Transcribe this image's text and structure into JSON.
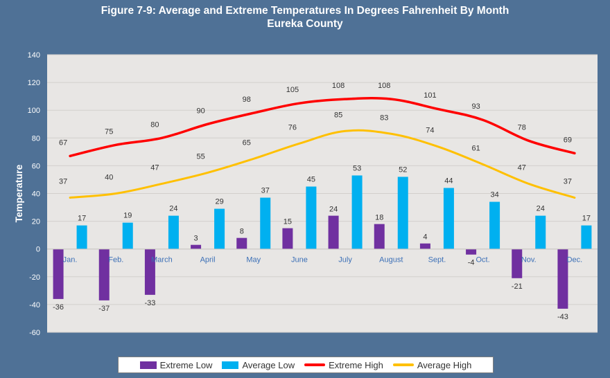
{
  "title": {
    "line1": "Figure 7-9: Average and Extreme Temperatures In Degrees Fahrenheit By Month",
    "line2": "Eureka County"
  },
  "colors": {
    "extreme_low": "#7030a0",
    "average_low": "#00b0f0",
    "extreme_high": "#ff0000",
    "average_high": "#ffc000",
    "plot_bg": "#e8e6e4",
    "frame_bg": "#4f7196"
  },
  "chart_data": {
    "type": "bar",
    "title": "Figure 7-9: Average and Extreme Temperatures In Degrees Fahrenheit By Month",
    "subtitle": "Eureka County",
    "xlabel": "",
    "ylabel": "Temperature",
    "ylim": [
      -60,
      140
    ],
    "yticks": [
      -60,
      -40,
      -20,
      0,
      20,
      40,
      60,
      80,
      100,
      120,
      140
    ],
    "grid": true,
    "legend_position": "bottom",
    "categories": [
      "Jan.",
      "Feb.",
      "March",
      "April",
      "May",
      "June",
      "July",
      "August",
      "Sept.",
      "Oct.",
      "Nov.",
      "Dec."
    ],
    "series": [
      {
        "name": "Extreme Low",
        "type": "bar",
        "color": "#7030a0",
        "values": [
          -36,
          -37,
          -33,
          3,
          8,
          15,
          24,
          18,
          4,
          -4,
          -21,
          -43
        ]
      },
      {
        "name": "Average Low",
        "type": "bar",
        "color": "#00b0f0",
        "values": [
          17,
          19,
          24,
          29,
          37,
          45,
          53,
          52,
          44,
          34,
          24,
          17
        ]
      },
      {
        "name": "Extreme High",
        "type": "line",
        "color": "#ff0000",
        "values": [
          67,
          75,
          80,
          90,
          98,
          105,
          108,
          108,
          101,
          93,
          78,
          69
        ]
      },
      {
        "name": "Average High",
        "type": "line",
        "color": "#ffc000",
        "values": [
          37,
          40,
          47,
          55,
          65,
          76,
          85,
          83,
          74,
          61,
          47,
          37
        ]
      }
    ]
  }
}
